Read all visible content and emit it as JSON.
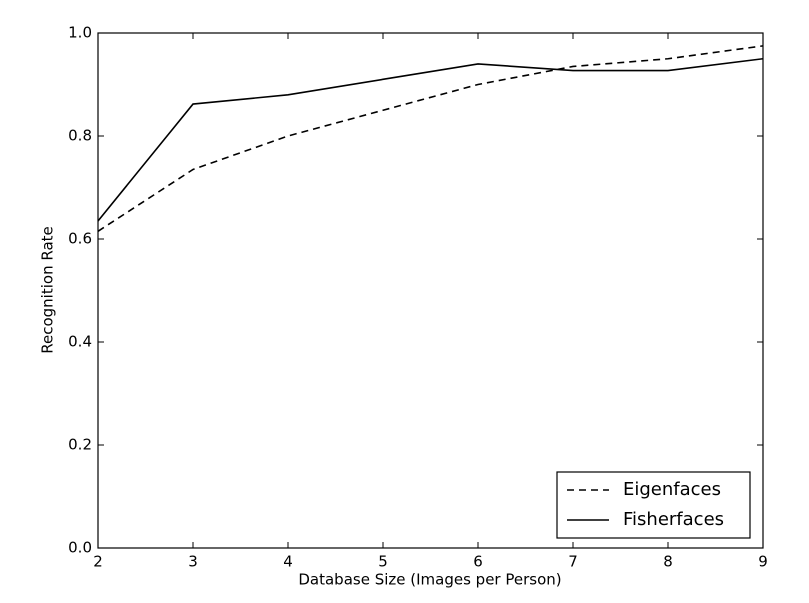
{
  "chart_data": {
    "type": "line",
    "xlabel": "Database Size (Images per Person)",
    "ylabel": "Recognition Rate",
    "x": [
      2,
      3,
      4,
      5,
      6,
      7,
      8,
      9
    ],
    "series": [
      {
        "name": "Eigenfaces",
        "color": "#000000",
        "linestyle": "dashed",
        "values": [
          0.615,
          0.735,
          0.8,
          0.85,
          0.9,
          0.935,
          0.95,
          0.975
        ]
      },
      {
        "name": "Fisherfaces",
        "color": "#000000",
        "linestyle": "solid",
        "values": [
          0.635,
          0.862,
          0.88,
          0.91,
          0.94,
          0.927,
          0.927,
          0.95
        ]
      }
    ],
    "xlim": [
      2,
      9
    ],
    "xticks": [
      2,
      3,
      4,
      5,
      6,
      7,
      8,
      9
    ],
    "ylim": [
      0,
      1
    ],
    "yticks": [
      {
        "value": 0,
        "label": "0.0"
      },
      0.2,
      0.4,
      0.6,
      0.8,
      {
        "value": 1,
        "label": "1.0"
      }
    ],
    "grid": false,
    "legend": "lower right"
  }
}
